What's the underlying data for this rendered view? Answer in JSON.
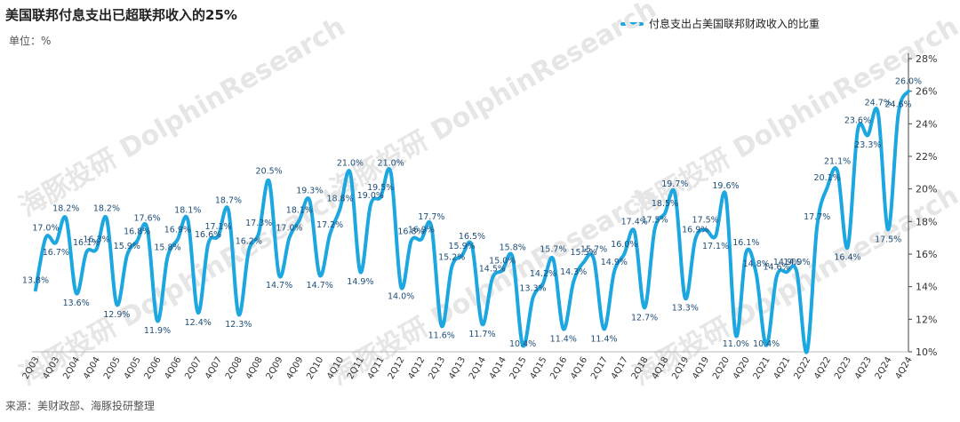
{
  "title": "美国联邦付息支出已超联邦收入的25%",
  "unit": "单位：%",
  "source": "来源：美财政部、海豚投研整理",
  "watermark": "海豚投研 DolphinResearch",
  "colors": {
    "line": "#1CA7E0",
    "label": "#1f4e79",
    "axis": "#444444",
    "watermark": "#e6e6e6"
  },
  "chart_data": {
    "type": "line",
    "ylim": [
      10,
      28
    ],
    "yticks": [
      10,
      12,
      14,
      16,
      18,
      20,
      22,
      24,
      26,
      28
    ],
    "ytick_labels": [
      "10%",
      "12%",
      "14%",
      "16%",
      "18%",
      "20%",
      "22%",
      "24%",
      "26%",
      "28%"
    ],
    "xtick_labels": [
      "2Q03",
      "4Q03",
      "2Q04",
      "4Q04",
      "2Q05",
      "4Q05",
      "2Q06",
      "4Q06",
      "2Q07",
      "4Q07",
      "2Q08",
      "4Q08",
      "2Q09",
      "4Q09",
      "2Q10",
      "4Q10",
      "2Q11",
      "4Q11",
      "2Q12",
      "4Q12",
      "2Q13",
      "4Q13",
      "2Q14",
      "4Q14",
      "2Q15",
      "4Q15",
      "2Q16",
      "4Q16",
      "2Q17",
      "4Q17",
      "2Q18",
      "4Q18",
      "2Q19",
      "4Q19",
      "2Q20",
      "4Q20",
      "2Q21",
      "4Q21",
      "2Q22",
      "4Q22",
      "2Q23",
      "4Q23",
      "2Q24",
      "4Q24"
    ],
    "series": [
      {
        "name": "付息支出占美国联邦财政收入的比重",
        "values": [
          13.8,
          17.0,
          16.7,
          18.2,
          13.6,
          16.1,
          16.3,
          18.2,
          12.9,
          15.9,
          16.8,
          17.6,
          11.9,
          15.8,
          16.9,
          18.1,
          12.4,
          16.6,
          17.1,
          18.7,
          12.3,
          16.2,
          17.3,
          20.5,
          14.7,
          17.0,
          18.1,
          19.3,
          14.7,
          17.2,
          18.8,
          21.0,
          14.9,
          19.0,
          19.5,
          21.0,
          14.0,
          16.8,
          16.9,
          17.7,
          11.6,
          15.2,
          15.9,
          16.5,
          11.7,
          14.5,
          15.0,
          15.8,
          10.4,
          13.3,
          14.2,
          15.7,
          11.4,
          14.3,
          15.5,
          15.7,
          11.4,
          14.9,
          16.0,
          17.4,
          12.7,
          17.5,
          18.5,
          19.7,
          13.3,
          16.9,
          17.5,
          17.1,
          19.6,
          11.0,
          16.1,
          14.8,
          10.4,
          14.6,
          14.9,
          14.9,
          10.0,
          17.7,
          20.1,
          21.1,
          16.4,
          23.6,
          23.3,
          24.7,
          17.5,
          24.6,
          26.0
        ],
        "labels": [
          "13.8%",
          "17.0%",
          "16.7%",
          "18.2%",
          "13.6%",
          "16.1%",
          "16.3%",
          "18.2%",
          "12.9%",
          "15.9%",
          "16.8%",
          "17.6%",
          "11.9%",
          "15.8%",
          "16.9%",
          "18.1%",
          "12.4%",
          "16.6%",
          "17.1%",
          "18.7%",
          "12.3%",
          "16.2%",
          "17.3%",
          "20.5%",
          "14.7%",
          "17.0%",
          "18.1%",
          "19.3%",
          "14.7%",
          "17.2%",
          "18.8%",
          "21.0%",
          "14.9%",
          "19.0%",
          "19.5%",
          "21.0%",
          "14.0%",
          "16.8%",
          "16.9%",
          "17.7%",
          "11.6%",
          "15.2%",
          "15.9%",
          "16.5%",
          "11.7%",
          "14.5%",
          "15.0%",
          "15.8%",
          "10.4%",
          "13.3%",
          "14.2%",
          "15.7%",
          "11.4%",
          "14.3%",
          "15.5%",
          "15.7%",
          "11.4%",
          "14.9%",
          "16.0%",
          "17.4%",
          "12.7%",
          "17.5%",
          "18.5%",
          "19.7%",
          "13.3%",
          "16.9%",
          "17.5%",
          "17.1%",
          "19.6%",
          "11.0%",
          "16.1%",
          "14.8%",
          "10.4%",
          "14.6%",
          "14.9%",
          "14.9%",
          "",
          "17.7%",
          "20.1%",
          "21.1%",
          "16.4%",
          "23.6%",
          "23.3%",
          "24.7%",
          "17.5%",
          "24.6%",
          "26.0%"
        ]
      }
    ],
    "legend": "top-center",
    "grid": false
  }
}
